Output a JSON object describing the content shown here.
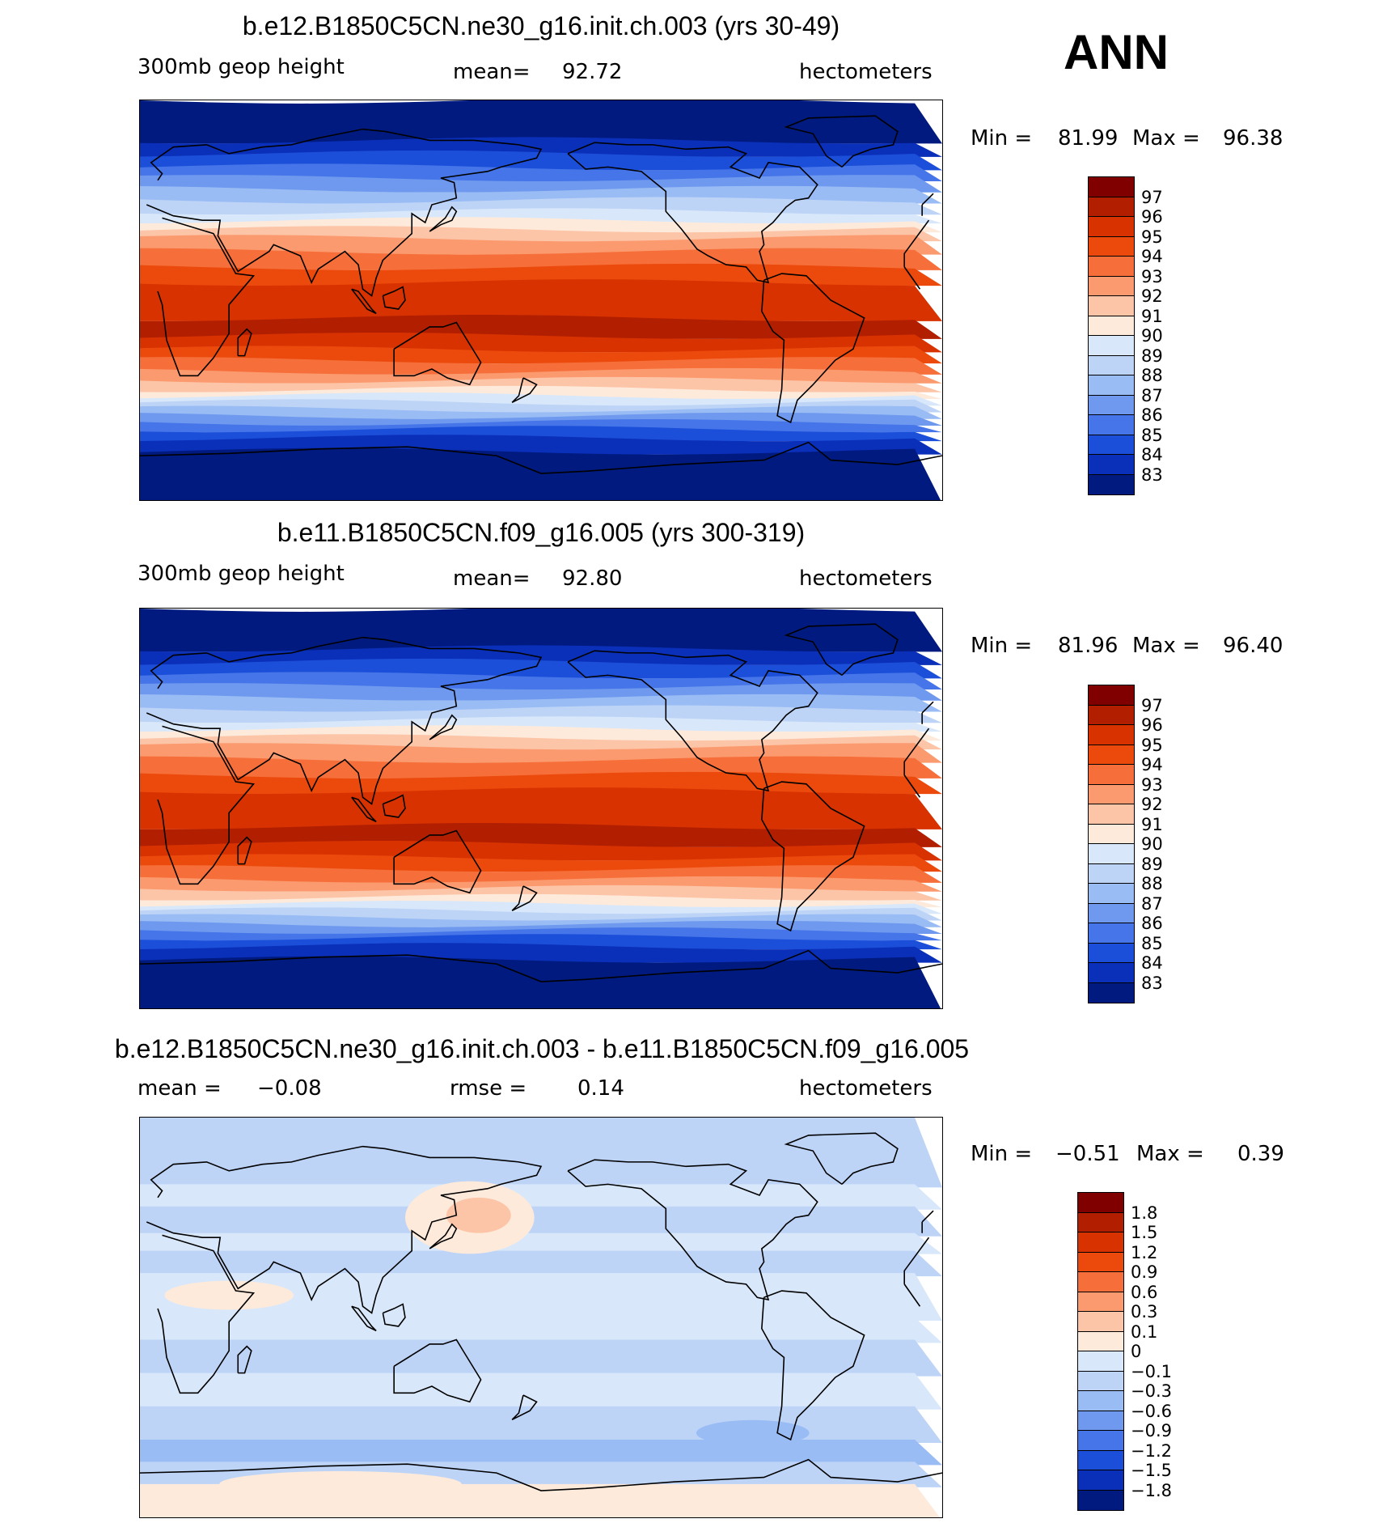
{
  "season": "ANN",
  "panels": [
    {
      "title": "b.e12.B1850C5CN.ne30_g16.init.ch.003 (yrs 30-49)",
      "variable": "300mb geop height",
      "stat1_label": "mean=",
      "stat1_value": "92.72",
      "units": "hectometers",
      "min_label": "Min =",
      "min_value": "81.99",
      "max_label": "Max =",
      "max_value": "96.38",
      "colorbar_labels": [
        "97",
        "96",
        "95",
        "94",
        "93",
        "92",
        "91",
        "90",
        "89",
        "88",
        "87",
        "86",
        "85",
        "84",
        "83"
      ]
    },
    {
      "title": "b.e11.B1850C5CN.f09_g16.005 (yrs 300-319)",
      "variable": "300mb geop height",
      "stat1_label": "mean=",
      "stat1_value": "92.80",
      "units": "hectometers",
      "min_label": "Min =",
      "min_value": "81.96",
      "max_label": "Max =",
      "max_value": "96.40",
      "colorbar_labels": [
        "97",
        "96",
        "95",
        "94",
        "93",
        "92",
        "91",
        "90",
        "89",
        "88",
        "87",
        "86",
        "85",
        "84",
        "83"
      ]
    },
    {
      "title": "b.e12.B1850C5CN.ne30_g16.init.ch.003 - b.e11.B1850C5CN.f09_g16.005",
      "stat1_label": "mean =",
      "stat1_value": "−0.08",
      "stat2_label": "rmse =",
      "stat2_value": "0.14",
      "units": "hectometers",
      "min_label": "Min =",
      "min_value": "−0.51",
      "max_label": "Max =",
      "max_value": "0.39",
      "colorbar_labels": [
        "1.8",
        "1.5",
        "1.2",
        "0.9",
        "0.6",
        "0.3",
        "0.1",
        "0",
        "−0.1",
        "−0.3",
        "−0.6",
        "−0.9",
        "−1.2",
        "−1.5",
        "−1.8"
      ]
    }
  ],
  "colors": {
    "scale16": [
      "#800000",
      "#b21f00",
      "#d83200",
      "#eb4a0c",
      "#f66f3a",
      "#fb9a6f",
      "#fcc5a8",
      "#feeadb",
      "#d8e8fa",
      "#bdd4f7",
      "#9abcf4",
      "#6e99ee",
      "#4575e8",
      "#1c4fd9",
      "#0a2fb8",
      "#001a80"
    ],
    "land_outline": "#000000"
  }
}
